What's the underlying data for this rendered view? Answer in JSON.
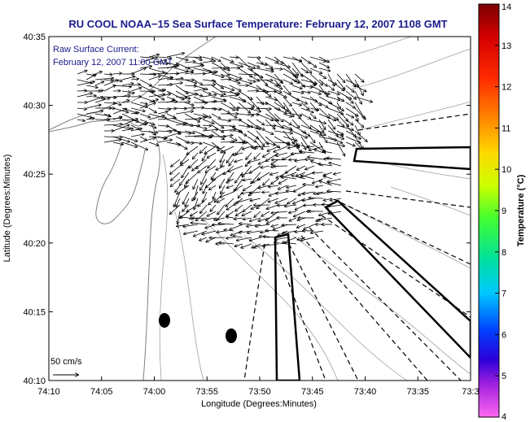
{
  "title": "RU COOL  NOAA−15  Sea Surface Temperature:  February 12, 2007 1108 GMT",
  "legend_lines": [
    "Raw Surface Current:",
    "February 12, 2007 11:00 GMT"
  ],
  "scale_label": "50 cm/s",
  "xlabel": "Longitude (Degrees:Minutes)",
  "ylabel": "Latitude (Degrees:Minutes)",
  "x_ticks": [
    "74:10",
    "74:05",
    "74:00",
    "73:55",
    "73:50",
    "73:45",
    "73:40",
    "73:35",
    "73:3"
  ],
  "y_ticks": [
    "40:35",
    "40:30",
    "40:25",
    "40:20",
    "40:15",
    "40:10"
  ],
  "colorbar": {
    "label": "Temperature (°C)",
    "ticks": [
      "14",
      "13",
      "12",
      "11",
      "10",
      "9",
      "8",
      "7",
      "6",
      "5",
      "4"
    ],
    "range": [
      4,
      14
    ]
  },
  "colors": {
    "title": "#1a1a8c",
    "coast": "#808080",
    "vectors": "#000000"
  }
}
